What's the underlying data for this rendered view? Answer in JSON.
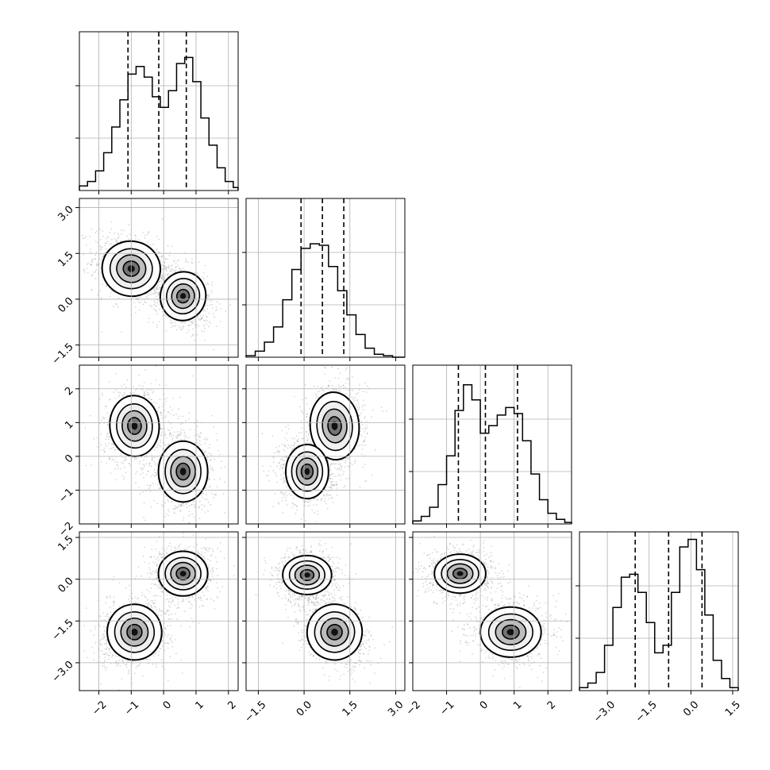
{
  "figure": {
    "type": "corner-plot",
    "dimensions": 4,
    "grid": true,
    "dashed_quantile_lines": true
  },
  "colors": {
    "hist_line": "#000000",
    "contour_line": "#000000",
    "grid": "#b0b0b0",
    "scatter": "#7f7f7f",
    "density_dark": "#111111"
  },
  "chart_data": [
    {
      "type": "histogram",
      "panel": "hist-0",
      "dim": 0,
      "xlim": [
        -2.6,
        2.3
      ],
      "quantiles": [
        -1.1,
        -0.15,
        0.7
      ],
      "bin_edges": [
        -2.6,
        -2.35,
        -2.1,
        -1.85,
        -1.6,
        -1.35,
        -1.1,
        -0.85,
        -0.6,
        -0.35,
        -0.1,
        0.15,
        0.4,
        0.65,
        0.9,
        1.15,
        1.4,
        1.65,
        1.9,
        2.15,
        2.3
      ],
      "counts": [
        0.03,
        0.06,
        0.13,
        0.25,
        0.42,
        0.6,
        0.77,
        0.82,
        0.75,
        0.62,
        0.55,
        0.66,
        0.84,
        0.88,
        0.72,
        0.48,
        0.3,
        0.15,
        0.06,
        0.02
      ]
    },
    {
      "type": "histogram",
      "panel": "hist-1",
      "dim": 1,
      "xlim": [
        -1.9,
        3.3
      ],
      "quantiles": [
        -0.1,
        0.6,
        1.3
      ],
      "bin_edges": [
        -1.9,
        -1.6,
        -1.3,
        -1.0,
        -0.7,
        -0.4,
        -0.1,
        0.2,
        0.5,
        0.8,
        1.1,
        1.4,
        1.7,
        2.0,
        2.3,
        2.6,
        2.9,
        3.3
      ],
      "counts": [
        0.01,
        0.04,
        0.1,
        0.2,
        0.38,
        0.58,
        0.72,
        0.75,
        0.74,
        0.6,
        0.44,
        0.28,
        0.15,
        0.06,
        0.02,
        0.01,
        0.0
      ]
    },
    {
      "type": "histogram",
      "panel": "hist-2",
      "dim": 2,
      "xlim": [
        -2.0,
        2.7
      ],
      "quantiles": [
        -0.65,
        0.15,
        1.1
      ],
      "bin_edges": [
        -2.0,
        -1.75,
        -1.5,
        -1.25,
        -1.0,
        -0.75,
        -0.5,
        -0.25,
        0.0,
        0.25,
        0.5,
        0.75,
        1.0,
        1.25,
        1.5,
        1.75,
        2.0,
        2.25,
        2.5,
        2.7
      ],
      "counts": [
        0.02,
        0.05,
        0.11,
        0.26,
        0.45,
        0.75,
        0.92,
        0.82,
        0.6,
        0.65,
        0.72,
        0.77,
        0.73,
        0.55,
        0.33,
        0.16,
        0.07,
        0.03,
        0.01
      ]
    },
    {
      "type": "histogram",
      "panel": "hist-3",
      "dim": 3,
      "xlim": [
        -4.0,
        1.7
      ],
      "quantiles": [
        -2.0,
        -0.8,
        0.4
      ],
      "bin_edges": [
        -4.0,
        -3.7,
        -3.4,
        -3.1,
        -2.8,
        -2.5,
        -2.2,
        -1.9,
        -1.6,
        -1.3,
        -1.0,
        -0.7,
        -0.4,
        -0.1,
        0.2,
        0.5,
        0.8,
        1.1,
        1.4,
        1.7
      ],
      "counts": [
        0.02,
        0.05,
        0.12,
        0.3,
        0.55,
        0.75,
        0.77,
        0.65,
        0.45,
        0.25,
        0.3,
        0.65,
        0.95,
        1.0,
        0.8,
        0.5,
        0.2,
        0.08,
        0.02
      ]
    },
    {
      "type": "scatter",
      "panel": "p-1-0",
      "dims": [
        0,
        1
      ],
      "xlim": [
        -2.6,
        2.3
      ],
      "ylim": [
        -1.9,
        3.3
      ],
      "modes": [
        {
          "x": -1.0,
          "y": 1.0,
          "sx": 0.45,
          "sy": 0.45,
          "rho": -0.3
        },
        {
          "x": 0.6,
          "y": 0.1,
          "sx": 0.35,
          "sy": 0.4,
          "rho": -0.3
        }
      ]
    },
    {
      "type": "scatter",
      "panel": "p-2-0",
      "dims": [
        0,
        2
      ],
      "xlim": [
        -2.6,
        2.3
      ],
      "ylim": [
        -2.0,
        2.7
      ],
      "modes": [
        {
          "x": -0.9,
          "y": 0.9,
          "sx": 0.38,
          "sy": 0.45,
          "rho": 0.1
        },
        {
          "x": 0.6,
          "y": -0.45,
          "sx": 0.38,
          "sy": 0.45,
          "rho": 0.0
        }
      ]
    },
    {
      "type": "scatter",
      "panel": "p-2-1",
      "dims": [
        1,
        2
      ],
      "xlim": [
        -1.9,
        3.3
      ],
      "ylim": [
        -2.0,
        2.7
      ],
      "modes": [
        {
          "x": 1.0,
          "y": 0.9,
          "sx": 0.4,
          "sy": 0.5,
          "rho": 0.1
        },
        {
          "x": 0.1,
          "y": -0.45,
          "sx": 0.35,
          "sy": 0.4,
          "rho": 0.0
        }
      ]
    },
    {
      "type": "scatter",
      "panel": "p-3-0",
      "dims": [
        0,
        3
      ],
      "xlim": [
        -2.6,
        2.3
      ],
      "ylim": [
        -4.0,
        1.7
      ],
      "modes": [
        {
          "x": 0.6,
          "y": 0.2,
          "sx": 0.38,
          "sy": 0.4,
          "rho": 0.0
        },
        {
          "x": -0.9,
          "y": -1.9,
          "sx": 0.42,
          "sy": 0.5,
          "rho": 0.2
        }
      ]
    },
    {
      "type": "scatter",
      "panel": "p-3-1",
      "dims": [
        1,
        3
      ],
      "xlim": [
        -1.9,
        3.3
      ],
      "ylim": [
        -4.0,
        1.7
      ],
      "modes": [
        {
          "x": 0.1,
          "y": 0.15,
          "sx": 0.4,
          "sy": 0.35,
          "rho": 0.0
        },
        {
          "x": 1.0,
          "y": -1.9,
          "sx": 0.45,
          "sy": 0.5,
          "rho": -0.4
        }
      ]
    },
    {
      "type": "scatter",
      "panel": "p-3-2",
      "dims": [
        2,
        3
      ],
      "xlim": [
        -2.0,
        2.7
      ],
      "ylim": [
        -4.0,
        1.7
      ],
      "modes": [
        {
          "x": -0.6,
          "y": 0.2,
          "sx": 0.38,
          "sy": 0.35,
          "rho": 0.0
        },
        {
          "x": 0.9,
          "y": -1.9,
          "sx": 0.45,
          "sy": 0.45,
          "rho": 0.0
        }
      ]
    }
  ],
  "axes": {
    "rows": [
      {
        "row": 1,
        "ylim": [
          -1.9,
          3.3
        ],
        "ticks": [
          -1.5,
          0.0,
          1.5,
          3.0
        ],
        "labels": [
          "−1.5",
          "0.0",
          "1.5",
          "3.0"
        ]
      },
      {
        "row": 2,
        "ylim": [
          -2.0,
          2.7
        ],
        "ticks": [
          -2,
          -1,
          0,
          1,
          2
        ],
        "labels": [
          "−2",
          "−1",
          "0",
          "1",
          "2"
        ]
      },
      {
        "row": 3,
        "ylim": [
          -4.0,
          1.7
        ],
        "ticks": [
          -3.0,
          -1.5,
          0.0,
          1.5
        ],
        "labels": [
          "−3.0",
          "−1.5",
          "0.0",
          "1.5"
        ]
      }
    ],
    "cols": [
      {
        "col": 0,
        "xlim": [
          -2.6,
          2.3
        ],
        "ticks": [
          -2,
          -1,
          0,
          1,
          2
        ],
        "labels": [
          "−2",
          "−1",
          "0",
          "1",
          "2"
        ]
      },
      {
        "col": 1,
        "xlim": [
          -1.9,
          3.3
        ],
        "ticks": [
          -1.5,
          0.0,
          1.5,
          3.0
        ],
        "labels": [
          "−1.5",
          "0.0",
          "1.5",
          "3.0"
        ]
      },
      {
        "col": 2,
        "xlim": [
          -2.0,
          2.7
        ],
        "ticks": [
          -2,
          -1,
          0,
          1,
          2
        ],
        "labels": [
          "−2",
          "−1",
          "0",
          "1",
          "2"
        ]
      },
      {
        "col": 3,
        "xlim": [
          -4.0,
          1.7
        ],
        "ticks": [
          -3.0,
          -1.5,
          0.0,
          1.5
        ],
        "labels": [
          "−3.0",
          "−1.5",
          "0.0",
          "1.5"
        ]
      }
    ]
  }
}
